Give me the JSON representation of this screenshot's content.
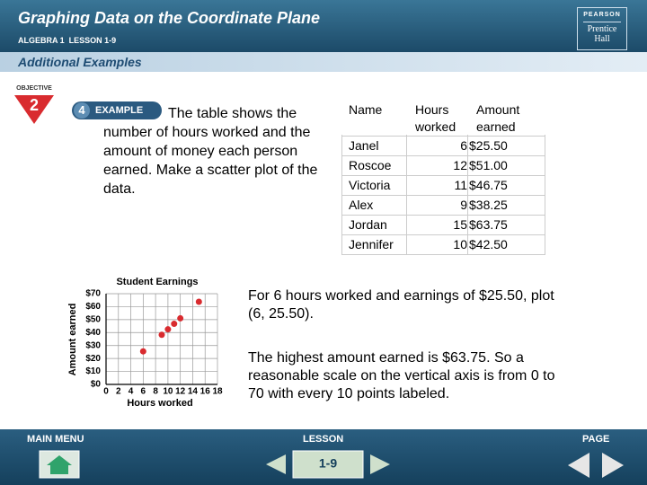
{
  "header": {
    "title": "Graphing Data on the Coordinate Plane",
    "subtitle": "ALGEBRA 1  LESSON 1-9",
    "logo_top": "PEARSON",
    "logo_bottom": "Prentice Hall"
  },
  "section": "Additional Examples",
  "objective": {
    "label": "OBJECTIVE",
    "number": "2"
  },
  "example": {
    "number": "4",
    "label": "EXAMPLE",
    "text": "The table shows the number of hours worked and the amount of money each person earned. Make a scatter plot of the data."
  },
  "table": {
    "header": [
      "Name",
      "Hours worked",
      "Amount earned"
    ],
    "rows": [
      [
        "Janel",
        "6",
        "$25.50"
      ],
      [
        "Roscoe",
        "12",
        "$51.00"
      ],
      [
        "Victoria",
        "11",
        "$46.75"
      ],
      [
        "Alex",
        "9",
        "$38.25"
      ],
      [
        "Jordan",
        "15",
        "$63.75"
      ],
      [
        "Jennifer",
        "10",
        "$42.50"
      ]
    ]
  },
  "chart_data": {
    "type": "scatter",
    "title": "Student Earnings",
    "x_label": "Hours worked",
    "y_label": "Amount earned",
    "x": [
      6,
      12,
      11,
      9,
      15,
      10
    ],
    "values": [
      25.5,
      51,
      46.75,
      38.25,
      63.75,
      42.5
    ],
    "color": "#d92b2f",
    "xlim": [
      0,
      18
    ],
    "ylim": [
      0,
      70
    ],
    "xticks": [
      0,
      2,
      4,
      6,
      8,
      10,
      12,
      14,
      16,
      18
    ],
    "yticks": [
      {
        "value": 0,
        "label": "$0"
      },
      {
        "value": 10,
        "label": "$10"
      },
      {
        "value": 20,
        "label": "$20"
      },
      {
        "value": 30,
        "label": "$30"
      },
      {
        "value": 40,
        "label": "$40"
      },
      {
        "value": 50,
        "label": "$50"
      },
      {
        "value": 60,
        "label": "$60"
      },
      {
        "value": 70,
        "label": "$70"
      }
    ],
    "grid": true
  },
  "notes": [
    "For 6 hours worked and earnings of $25.50, plot (6, 25.50).",
    "The highest amount earned is $63.75. So a reasonable scale on the vertical axis is from 0 to 70 with every 10 points labeled."
  ],
  "nav": {
    "main_menu": "MAIN MENU",
    "lesson": "LESSON",
    "page": "PAGE",
    "lesson_button": "1-9"
  }
}
